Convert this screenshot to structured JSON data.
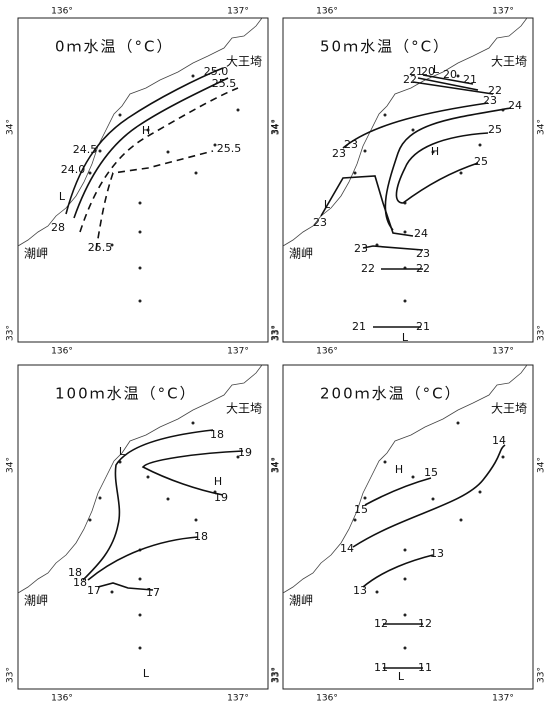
{
  "panels": [
    {
      "title": "0ｍ水温（°C）",
      "places": [
        "大王埼",
        "潮岬"
      ],
      "ticks": {
        "top": [
          "136°",
          "137°"
        ],
        "bottom": [
          "136°",
          "137°"
        ],
        "left": [
          "34°",
          "33°"
        ],
        "right": [
          "34°",
          "33°"
        ]
      },
      "labels": [
        "25.0",
        "25.5",
        "25.5",
        "24.5",
        "24.0",
        "28",
        "25.5",
        "H",
        "L"
      ]
    },
    {
      "title": "50ｍ水温（°C）",
      "places": [
        "大王埼",
        "潮岬"
      ],
      "ticks": {
        "top": [
          "136°",
          "137°"
        ],
        "bottom": [
          "136°",
          "137°"
        ],
        "left": [
          "34°",
          "33°"
        ],
        "right": [
          "34°",
          "33°"
        ]
      },
      "labels": [
        "21",
        "20",
        "L",
        "20",
        "21",
        "22",
        "22",
        "23",
        "24",
        "25",
        "25",
        "H",
        "23",
        "23",
        "L",
        "23",
        "24",
        "23",
        "23",
        "22",
        "22",
        "21",
        "21",
        "L"
      ]
    },
    {
      "title": "100ｍ水温（°C）",
      "places": [
        "大王埼",
        "潮岬"
      ],
      "ticks": {
        "bottom": [
          "136°",
          "137°"
        ],
        "left": [
          "34°",
          "33°"
        ],
        "right": [
          "34°",
          "33°"
        ]
      },
      "labels": [
        "18",
        "19",
        "H",
        "19",
        "L",
        "18",
        "18",
        "18",
        "17",
        "17",
        "L"
      ]
    },
    {
      "title": "200ｍ水温（°C）",
      "places": [
        "大王埼",
        "潮岬"
      ],
      "ticks": {
        "bottom": [
          "136°",
          "137°"
        ],
        "left": [
          "34°",
          "33°"
        ],
        "right": [
          "34°",
          "33°"
        ]
      },
      "labels": [
        "14",
        "H",
        "15",
        "15",
        "14",
        "13",
        "13",
        "12",
        "12",
        "11",
        "11",
        "L"
      ]
    }
  ]
}
